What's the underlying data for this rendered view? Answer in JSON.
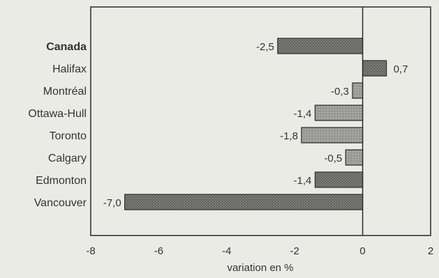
{
  "chart_data": {
    "type": "bar",
    "orientation": "horizontal",
    "categories": [
      "Canada",
      "Halifax",
      "Montréal",
      "Ottawa-Hull",
      "Toronto",
      "Calgary",
      "Edmonton",
      "Vancouver"
    ],
    "values": [
      -2.5,
      0.7,
      -0.3,
      -1.4,
      -1.8,
      -0.5,
      -1.4,
      -7.0
    ],
    "value_labels": [
      "-2,5",
      "0,7",
      "-0,3",
      "-1,4",
      "-1,8",
      "-0,5",
      "-1,4",
      "-7,0"
    ],
    "bold_categories": [
      "Canada"
    ],
    "xlabel": "variation en %",
    "xlim": [
      -8,
      2
    ],
    "xticks": [
      -8,
      -6,
      -4,
      -2,
      0,
      2
    ],
    "grid": false,
    "colors": {
      "background": "#ebebe6",
      "plot_background": "#ebebe6",
      "bar_dark": "#6a6a66",
      "bar_light": "#9c9c98",
      "axis": "#2a2a2a",
      "text": "#333333"
    }
  }
}
